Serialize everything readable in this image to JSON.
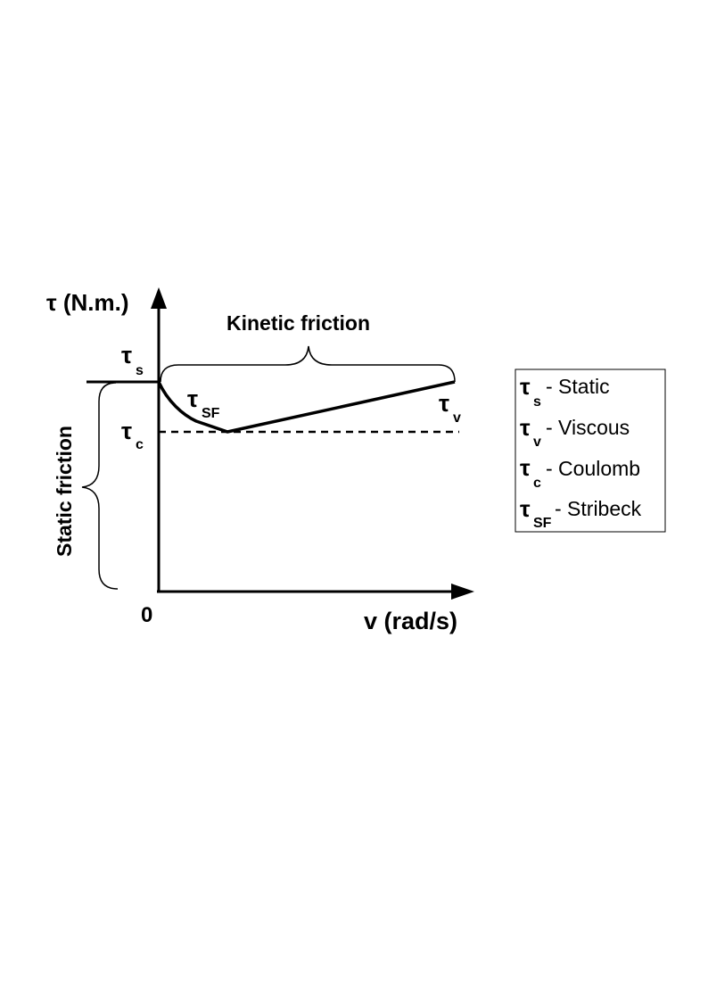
{
  "axes": {
    "y_label": "τ (N.m.)",
    "x_label": "v (rad/s)",
    "origin_label": "0"
  },
  "labels": {
    "kinetic_friction": "Kinetic friction",
    "static_friction": "Static friction",
    "tau_symbol": "τ",
    "static_sub": "s",
    "coulomb_sub": "c",
    "stribeck_sub": "SF",
    "viscous_sub": "v"
  },
  "legend": {
    "items": [
      {
        "symbol": "τ",
        "sub": "s",
        "text": " - Static"
      },
      {
        "symbol": "τ",
        "sub": "v",
        "text": " - Viscous"
      },
      {
        "symbol": "τ",
        "sub": "c",
        "text": " - Coulomb"
      },
      {
        "symbol": "τ",
        "sub": "SF",
        "text": "- Stribeck"
      }
    ]
  },
  "colors": {
    "ink": "#000000",
    "background": "#ffffff"
  }
}
